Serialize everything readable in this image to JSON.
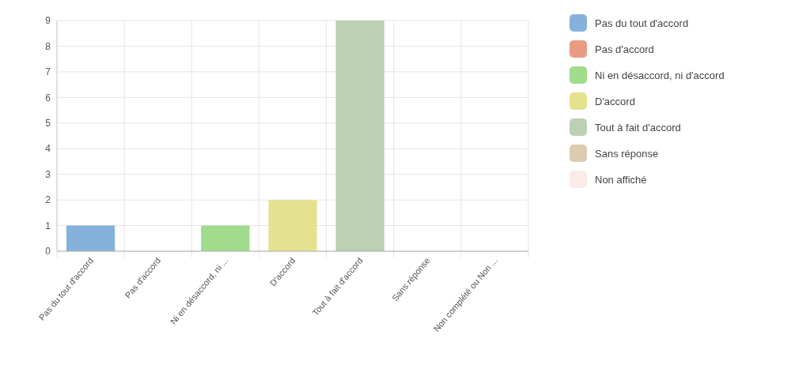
{
  "chart_data": {
    "type": "bar",
    "stacked": true,
    "categories": [
      "Pas du tout d'accord",
      "Pas d'accord",
      "Ni en désaccord, ni ...",
      "D'accord",
      "Tout à fait d'accord",
      "Sans réponse",
      "Non complété ou Non ..."
    ],
    "series": [
      {
        "name": "Pas du tout d'accord",
        "color": "#85b2db",
        "values": [
          1,
          null,
          null,
          null,
          null,
          null,
          null
        ]
      },
      {
        "name": "Pas d'accord",
        "color": "#e99c82",
        "values": [
          null,
          0,
          null,
          null,
          null,
          null,
          null
        ]
      },
      {
        "name": "Ni en désaccord, ni d'accord",
        "color": "#a0dc8c",
        "values": [
          null,
          null,
          1,
          null,
          null,
          null,
          null
        ]
      },
      {
        "name": "D'accord",
        "color": "#e5e28f",
        "values": [
          null,
          null,
          null,
          2,
          null,
          null,
          null
        ]
      },
      {
        "name": "Tout à fait d'accord",
        "color": "#bcd0b4",
        "values": [
          null,
          null,
          null,
          null,
          9,
          null,
          null
        ]
      },
      {
        "name": "Sans réponse",
        "color": "#dccbb0",
        "values": [
          null,
          null,
          null,
          null,
          null,
          0,
          null
        ]
      },
      {
        "name": "Non affiché",
        "color": "#faece6",
        "values": [
          null,
          null,
          null,
          null,
          null,
          null,
          0
        ]
      }
    ],
    "ylim": [
      0,
      9
    ],
    "yticks": [
      0,
      1,
      2,
      3,
      4,
      5,
      6,
      7,
      8,
      9
    ],
    "grid": true,
    "legend": "right"
  }
}
